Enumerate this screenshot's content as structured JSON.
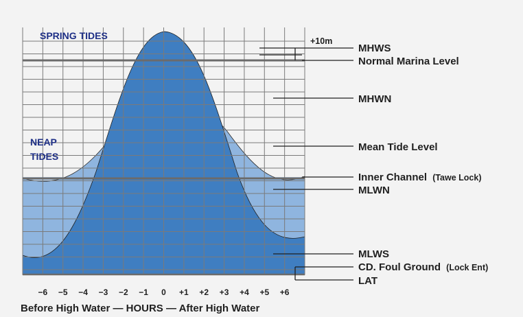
{
  "titles": {
    "spring": "SPRING TIDES",
    "neap_line1": "NEAP",
    "neap_line2": "TIDES"
  },
  "top_mark": "+10m",
  "levels": [
    {
      "id": "mhws",
      "label": "MHWS",
      "suffix": ""
    },
    {
      "id": "marina",
      "label": "Normal Marina Level",
      "suffix": ""
    },
    {
      "id": "mhwn",
      "label": "MHWN",
      "suffix": ""
    },
    {
      "id": "mean",
      "label": "Mean Tide Level",
      "suffix": ""
    },
    {
      "id": "inner",
      "label": "Inner Channel",
      "suffix": "(Tawe Lock)"
    },
    {
      "id": "mlwn",
      "label": "MLWN",
      "suffix": ""
    },
    {
      "id": "mlws",
      "label": "MLWS",
      "suffix": ""
    },
    {
      "id": "cd",
      "label": "CD. Foul Ground",
      "suffix": "(Lock Ent)"
    },
    {
      "id": "lat",
      "label": "LAT",
      "suffix": ""
    }
  ],
  "hours": [
    "−6",
    "−5",
    "−4",
    "−3",
    "−2",
    "−1",
    "0",
    "+1",
    "+2",
    "+3",
    "+4",
    "+5",
    "+6"
  ],
  "x_caption": "Before High Water — HOURS — After High Water",
  "colors": {
    "spring_fill": "#3f7ec1",
    "neap_fill": "#8fb5df",
    "background_band": "#bcd3ec",
    "grid": "#7a7a7a",
    "title_blue": "#1e2f86"
  }
}
